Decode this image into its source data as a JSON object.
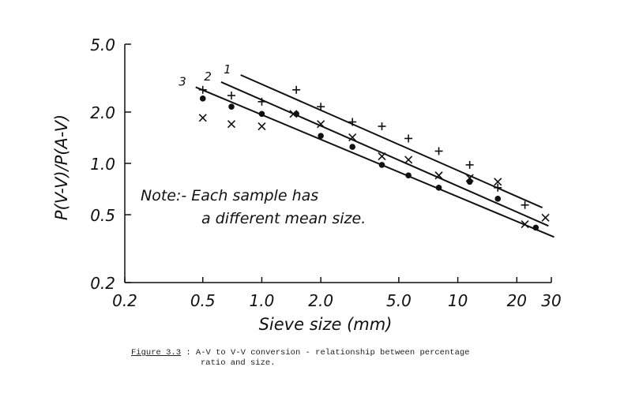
{
  "chart_data": {
    "type": "scatter",
    "xscale": "log",
    "yscale": "log",
    "xlim": [
      0.2,
      30
    ],
    "ylim": [
      0.2,
      5.0
    ],
    "xticks": [
      "0.2",
      "0.5",
      "1.0",
      "2.0",
      "5.0",
      "10",
      "20",
      "30"
    ],
    "xtick_values": [
      0.2,
      0.5,
      1.0,
      2.0,
      5.0,
      10,
      20,
      30
    ],
    "yticks": [
      "0.2",
      "0.5",
      "1.0",
      "2.0",
      "5.0"
    ],
    "ytick_values": [
      0.2,
      0.5,
      1.0,
      2.0,
      5.0
    ],
    "xlabel": "Sieve size (mm)",
    "ylabel": "P(V-V)/P(A-V)",
    "annotation": [
      "Note:- Each sample has",
      "a different mean size."
    ],
    "grid": false,
    "series": [
      {
        "marker": "plus",
        "points": [
          [
            0.5,
            2.7
          ],
          [
            0.7,
            2.5
          ],
          [
            1.0,
            2.3
          ],
          [
            1.5,
            2.7
          ],
          [
            2.0,
            2.15
          ],
          [
            2.9,
            1.75
          ],
          [
            4.1,
            1.65
          ],
          [
            5.6,
            1.4
          ],
          [
            8.0,
            1.18
          ],
          [
            11.5,
            0.98
          ],
          [
            16.0,
            0.72
          ],
          [
            22.0,
            0.57
          ]
        ]
      },
      {
        "marker": "cross",
        "points": [
          [
            0.5,
            1.85
          ],
          [
            0.7,
            1.7
          ],
          [
            1.0,
            1.65
          ],
          [
            1.45,
            1.95
          ],
          [
            2.0,
            1.7
          ],
          [
            2.9,
            1.42
          ],
          [
            4.1,
            1.1
          ],
          [
            5.6,
            1.05
          ],
          [
            8.0,
            0.85
          ],
          [
            11.5,
            0.82
          ],
          [
            16.0,
            0.78
          ],
          [
            22.0,
            0.44
          ],
          [
            28.0,
            0.48
          ]
        ]
      },
      {
        "marker": "dot",
        "points": [
          [
            0.5,
            2.4
          ],
          [
            0.7,
            2.15
          ],
          [
            1.0,
            1.95
          ],
          [
            1.5,
            1.95
          ],
          [
            2.0,
            1.45
          ],
          [
            2.9,
            1.25
          ],
          [
            4.1,
            0.98
          ],
          [
            5.6,
            0.85
          ],
          [
            8.0,
            0.72
          ],
          [
            11.5,
            0.78
          ],
          [
            16.0,
            0.62
          ],
          [
            25.0,
            0.42
          ]
        ]
      }
    ],
    "lines": [
      {
        "label": "1",
        "from": [
          0.78,
          3.3
        ],
        "to": [
          27.0,
          0.55
        ]
      },
      {
        "label": "2",
        "from": [
          0.62,
          3.0
        ],
        "to": [
          29.0,
          0.43
        ]
      },
      {
        "label": "3",
        "from": [
          0.46,
          2.8
        ],
        "to": [
          31.0,
          0.37
        ]
      }
    ]
  },
  "caption": {
    "figure_label": "Figure 3.3",
    "text": " : A-V to V-V conversion - relationship between percentage",
    "continuation": "ratio and size."
  }
}
